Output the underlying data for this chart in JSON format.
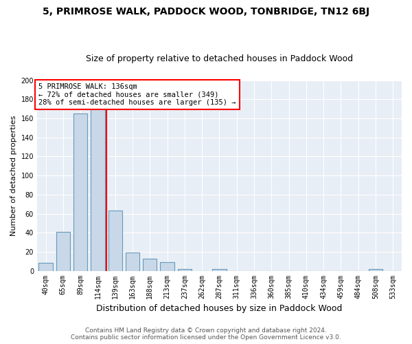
{
  "title": "5, PRIMROSE WALK, PADDOCK WOOD, TONBRIDGE, TN12 6BJ",
  "subtitle": "Size of property relative to detached houses in Paddock Wood",
  "xlabel": "Distribution of detached houses by size in Paddock Wood",
  "ylabel": "Number of detached properties",
  "bar_color": "#c8d8e8",
  "bar_edge_color": "#6699bb",
  "bg_color": "#e8eef5",
  "categories": [
    "40sqm",
    "65sqm",
    "89sqm",
    "114sqm",
    "139sqm",
    "163sqm",
    "188sqm",
    "213sqm",
    "237sqm",
    "262sqm",
    "287sqm",
    "311sqm",
    "336sqm",
    "360sqm",
    "385sqm",
    "410sqm",
    "434sqm",
    "459sqm",
    "484sqm",
    "508sqm",
    "533sqm"
  ],
  "values": [
    8,
    41,
    165,
    170,
    63,
    19,
    13,
    9,
    2,
    0,
    2,
    0,
    0,
    0,
    0,
    0,
    0,
    0,
    0,
    2,
    0
  ],
  "red_line_x": 3.5,
  "annotation_line1": "5 PRIMROSE WALK: 136sqm",
  "annotation_line2": "← 72% of detached houses are smaller (349)",
  "annotation_line3": "28% of semi-detached houses are larger (135) →",
  "footer_line1": "Contains HM Land Registry data © Crown copyright and database right 2024.",
  "footer_line2": "Contains public sector information licensed under the Open Government Licence v3.0.",
  "ylim": [
    0,
    200
  ],
  "yticks": [
    0,
    20,
    40,
    60,
    80,
    100,
    120,
    140,
    160,
    180,
    200
  ],
  "title_fontsize": 10,
  "subtitle_fontsize": 9,
  "ylabel_fontsize": 8,
  "xlabel_fontsize": 9,
  "tick_fontsize": 7,
  "annotation_fontsize": 7.5,
  "footer_fontsize": 6.5
}
